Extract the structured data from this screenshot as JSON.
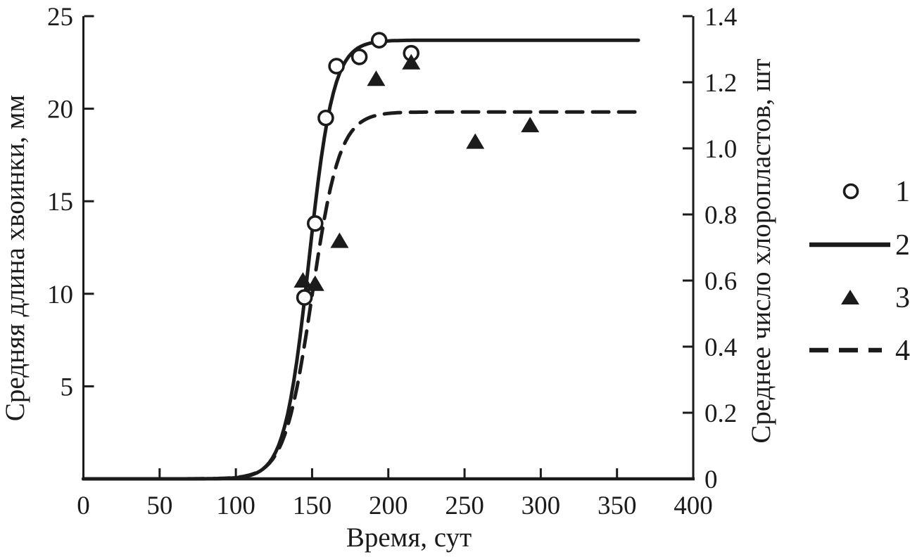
{
  "colors": {
    "foreground": "#1b1b1b",
    "background": "#ffffff"
  },
  "chart_data": {
    "type": "line",
    "title": "",
    "description": "Sigmoid growth curves: needle length (left axis) and chloroplast count (right axis) versus time in days",
    "x_axis": {
      "label": "Время, сут",
      "min": 0,
      "max": 400,
      "tick_values": [
        0,
        50,
        100,
        150,
        200,
        250,
        300,
        350,
        400
      ],
      "tick_labels": [
        "0",
        "50",
        "100",
        "150",
        "200",
        "250",
        "300",
        "350",
        "400"
      ]
    },
    "y_axis_left": {
      "label": "Средняя длина хвоинки, мм",
      "min": 0,
      "max": 25,
      "tick_values": [
        5,
        10,
        15,
        20,
        25
      ],
      "tick_labels": [
        "5",
        "10",
        "15",
        "20",
        "25"
      ]
    },
    "y_axis_right": {
      "label": "Среднее число хлоропластов, шт",
      "min": 0,
      "max": 1.4,
      "tick_values": [
        0,
        0.2,
        0.4,
        0.6,
        0.8,
        1.0,
        1.2,
        1.4
      ],
      "tick_labels": [
        "0",
        "0.2",
        "0.4",
        "0.6",
        "0.8",
        "1.0",
        "1.2",
        "1.4"
      ]
    },
    "grid": false,
    "legend_position": "right-outside",
    "series": [
      {
        "id": "1",
        "label": "1",
        "type": "scatter",
        "marker": "open-circle",
        "axis": "left",
        "points": [
          [
            145,
            9.8
          ],
          [
            152,
            13.8
          ],
          [
            159,
            19.5
          ],
          [
            166,
            22.3
          ],
          [
            181,
            22.8
          ],
          [
            194,
            23.7
          ],
          [
            215,
            23.0
          ]
        ]
      },
      {
        "id": "2",
        "label": "2",
        "type": "curve",
        "line_style": "solid",
        "axis": "left",
        "model": "logistic",
        "plateau": 23.7,
        "midpoint": 148,
        "steepness": 8,
        "t_start": 0,
        "t_end": 365
      },
      {
        "id": "3",
        "label": "3",
        "type": "scatter",
        "marker": "filled-triangle",
        "axis": "right",
        "points": [
          [
            144,
            0.6
          ],
          [
            152,
            0.59
          ],
          [
            168,
            0.72
          ],
          [
            192,
            1.21
          ],
          [
            215,
            1.26
          ],
          [
            257,
            1.02
          ],
          [
            293,
            1.07
          ]
        ]
      },
      {
        "id": "4",
        "label": "4",
        "type": "curve",
        "line_style": "dashed",
        "axis": "right",
        "model": "logistic",
        "plateau": 1.11,
        "midpoint": 150,
        "steepness": 9,
        "t_start": 0,
        "t_end": 365
      }
    ],
    "legend": [
      {
        "label": "1",
        "marker": "open-circle"
      },
      {
        "label": "2",
        "marker": "solid-line"
      },
      {
        "label": "3",
        "marker": "filled-triangle"
      },
      {
        "label": "4",
        "marker": "dashed-line"
      }
    ]
  }
}
